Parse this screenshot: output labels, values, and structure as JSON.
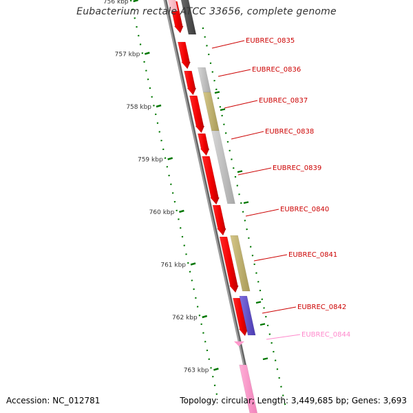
{
  "title": "Eubacterium rectale ATCC 33656, complete genome",
  "footer": {
    "accession": "Accession: NC_012781",
    "stats": "Topology: circular; Length: 3,449,685 bp; Genes: 3,693"
  },
  "colors": {
    "forward_gene": "#ff0000",
    "gray_gene": "#c0c0c0",
    "olive_gene": "#c8b870",
    "purple_gene": "#6a5acd",
    "pink_gene": "#ff99cc",
    "label_text": "#cc0000",
    "label_pink": "#ff88cc",
    "tick_green": "#007700"
  },
  "ticks": [
    {
      "label": "756 kbp"
    },
    {
      "label": "757 kbp"
    },
    {
      "label": "758 kbp"
    },
    {
      "label": "759 kbp"
    },
    {
      "label": "760 kbp"
    },
    {
      "label": "761 kbp"
    },
    {
      "label": "762 kbp"
    },
    {
      "label": "763 kbp"
    }
  ],
  "gene_labels": [
    {
      "text": "EUBREC_0835",
      "color": "#cc0000"
    },
    {
      "text": "EUBREC_0836",
      "color": "#cc0000"
    },
    {
      "text": "EUBREC_0837",
      "color": "#cc0000"
    },
    {
      "text": "EUBREC_0838",
      "color": "#cc0000"
    },
    {
      "text": "EUBREC_0839",
      "color": "#cc0000"
    },
    {
      "text": "EUBREC_0840",
      "color": "#cc0000"
    },
    {
      "text": "EUBREC_0841",
      "color": "#cc0000"
    },
    {
      "text": "EUBREC_0842",
      "color": "#cc0000"
    },
    {
      "text": "EUBREC_0844",
      "color": "#ff88cc"
    }
  ]
}
